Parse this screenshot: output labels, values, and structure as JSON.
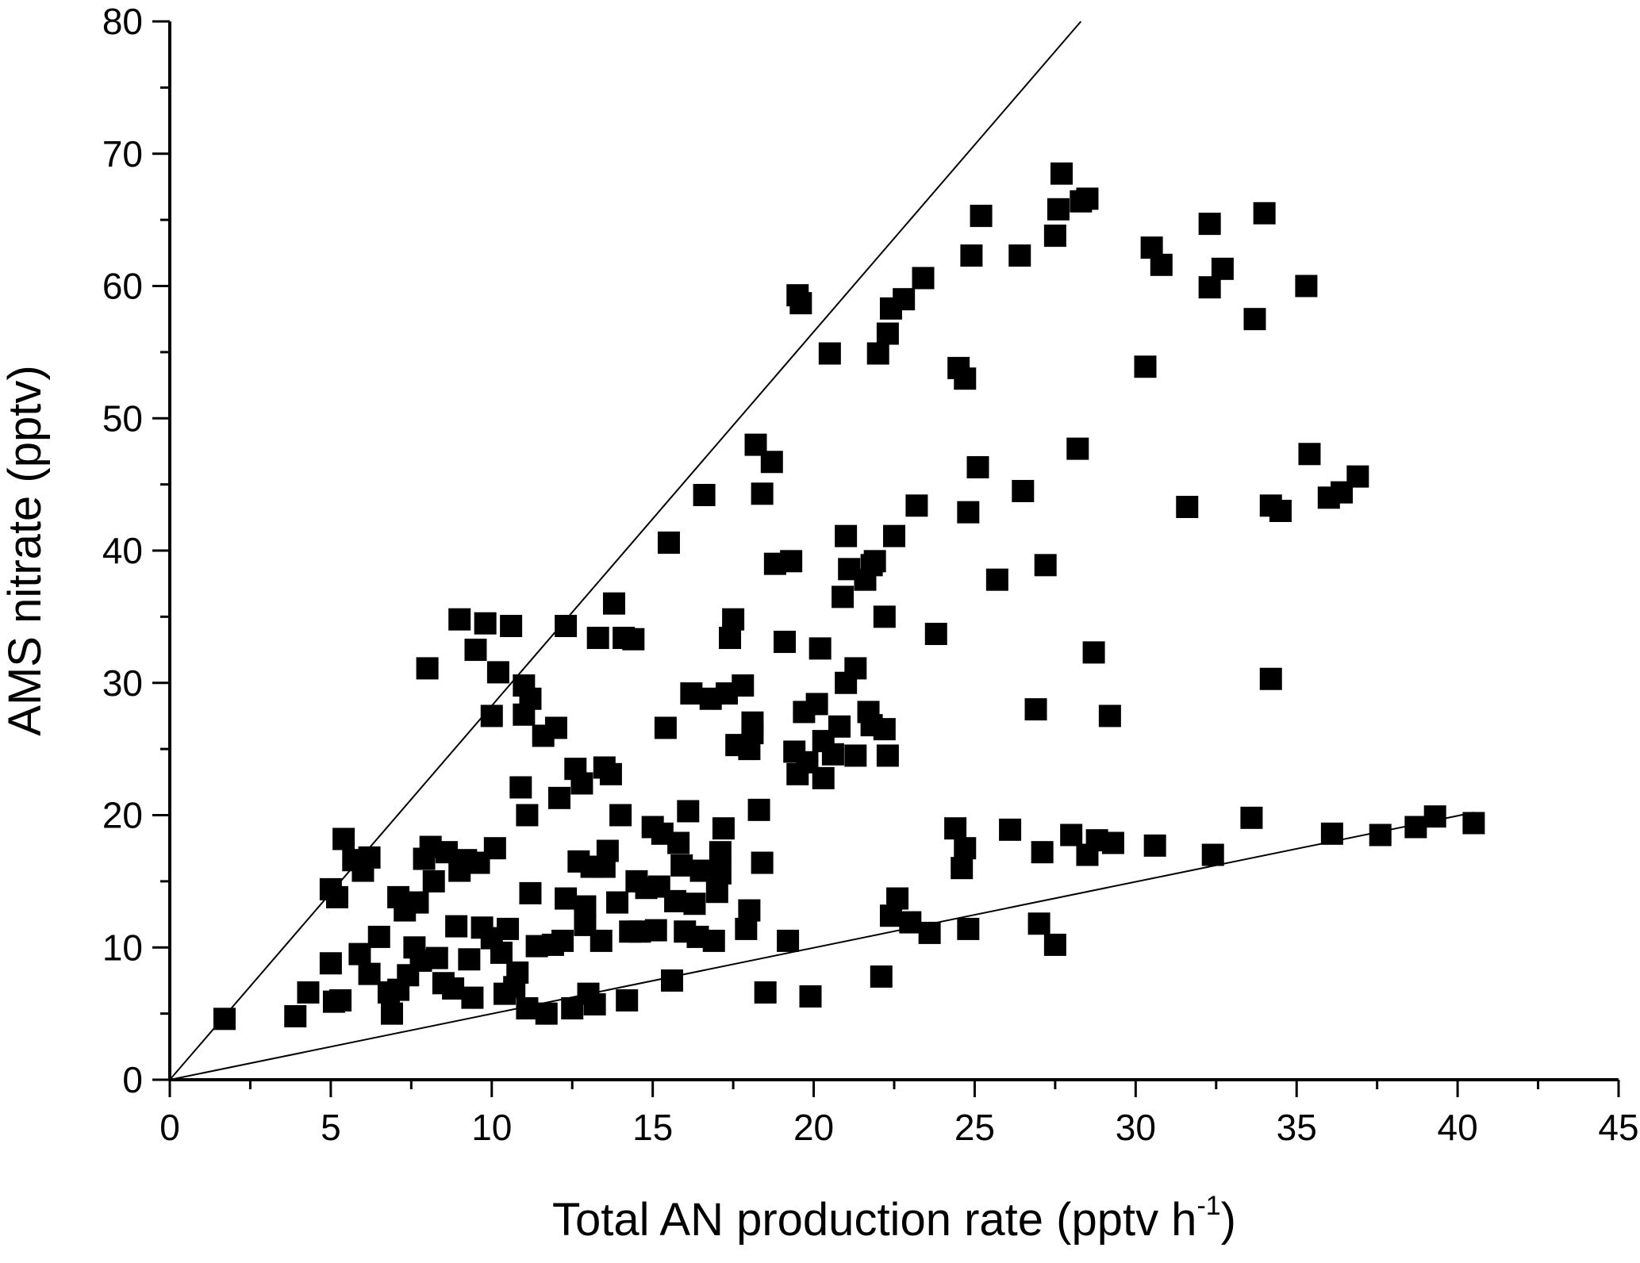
{
  "chart_data": {
    "type": "scatter",
    "xlabel_main": "Total AN production rate (pptv h",
    "xlabel_sup": "-1",
    "xlabel_tail": ")",
    "ylabel": "AMS nitrate (pptv)",
    "xlim": [
      0,
      45
    ],
    "ylim": [
      0,
      80
    ],
    "x_ticks": [
      0,
      5,
      10,
      15,
      20,
      25,
      30,
      35,
      40,
      45
    ],
    "y_ticks": [
      0,
      10,
      20,
      30,
      40,
      50,
      60,
      70,
      80
    ],
    "grid": false,
    "marker": "filled-square",
    "marker_color": "#000000",
    "reference_lines": [
      {
        "x": [
          0,
          28.3
        ],
        "y": [
          0,
          80
        ]
      },
      {
        "x": [
          0,
          40.5
        ],
        "y": [
          0,
          20.2
        ]
      }
    ],
    "points": [
      [
        1.7,
        4.6
      ],
      [
        3.9,
        4.8
      ],
      [
        4.3,
        6.6
      ],
      [
        5.3,
        6.0
      ],
      [
        5.1,
        5.9
      ],
      [
        5.0,
        8.8
      ],
      [
        5.0,
        14.4
      ],
      [
        5.2,
        13.8
      ],
      [
        5.4,
        18.2
      ],
      [
        5.7,
        16.6
      ],
      [
        6.0,
        15.8
      ],
      [
        6.2,
        16.8
      ],
      [
        5.9,
        9.5
      ],
      [
        6.2,
        8.0
      ],
      [
        6.5,
        10.8
      ],
      [
        6.8,
        6.6
      ],
      [
        6.9,
        5.0
      ],
      [
        7.1,
        6.8
      ],
      [
        7.1,
        13.8
      ],
      [
        7.3,
        12.8
      ],
      [
        7.4,
        7.9
      ],
      [
        7.6,
        10.0
      ],
      [
        7.7,
        13.4
      ],
      [
        7.8,
        9.0
      ],
      [
        7.9,
        16.7
      ],
      [
        8.0,
        31.1
      ],
      [
        8.1,
        17.6
      ],
      [
        8.2,
        15.0
      ],
      [
        8.3,
        9.2
      ],
      [
        8.5,
        7.3
      ],
      [
        8.6,
        17.2
      ],
      [
        8.8,
        6.9
      ],
      [
        8.9,
        11.6
      ],
      [
        9.0,
        15.8
      ],
      [
        9.0,
        34.8
      ],
      [
        9.2,
        16.6
      ],
      [
        9.3,
        9.1
      ],
      [
        9.4,
        6.2
      ],
      [
        9.5,
        32.5
      ],
      [
        9.6,
        16.4
      ],
      [
        9.7,
        11.5
      ],
      [
        9.8,
        34.5
      ],
      [
        10.0,
        10.7
      ],
      [
        10.0,
        27.5
      ],
      [
        10.1,
        17.5
      ],
      [
        10.2,
        30.8
      ],
      [
        10.3,
        9.6
      ],
      [
        10.4,
        6.5
      ],
      [
        10.5,
        11.4
      ],
      [
        10.6,
        34.3
      ],
      [
        10.7,
        7.0
      ],
      [
        10.8,
        8.1
      ],
      [
        10.9,
        22.1
      ],
      [
        11.0,
        29.8
      ],
      [
        11.0,
        27.6
      ],
      [
        11.1,
        5.4
      ],
      [
        11.1,
        20.0
      ],
      [
        11.2,
        28.8
      ],
      [
        11.2,
        14.1
      ],
      [
        11.4,
        10.1
      ],
      [
        11.6,
        26.0
      ],
      [
        11.7,
        5.0
      ],
      [
        11.9,
        10.2
      ],
      [
        12.0,
        26.6
      ],
      [
        12.1,
        21.3
      ],
      [
        12.2,
        10.5
      ],
      [
        12.3,
        13.7
      ],
      [
        12.3,
        34.3
      ],
      [
        12.5,
        5.4
      ],
      [
        12.6,
        23.5
      ],
      [
        12.7,
        16.5
      ],
      [
        12.8,
        22.4
      ],
      [
        12.9,
        13.1
      ],
      [
        12.9,
        11.7
      ],
      [
        13.0,
        6.5
      ],
      [
        13.1,
        16.1
      ],
      [
        13.2,
        5.7
      ],
      [
        13.3,
        33.4
      ],
      [
        13.4,
        10.5
      ],
      [
        13.5,
        23.6
      ],
      [
        13.5,
        16.1
      ],
      [
        13.6,
        17.3
      ],
      [
        13.7,
        23.1
      ],
      [
        13.8,
        36.0
      ],
      [
        13.9,
        13.4
      ],
      [
        14.0,
        20.0
      ],
      [
        14.1,
        33.4
      ],
      [
        14.2,
        6.0
      ],
      [
        14.3,
        11.2
      ],
      [
        14.4,
        33.3
      ],
      [
        14.5,
        15.0
      ],
      [
        14.6,
        11.2
      ],
      [
        14.8,
        14.5
      ],
      [
        15.0,
        19.1
      ],
      [
        15.1,
        11.3
      ],
      [
        15.2,
        14.6
      ],
      [
        15.3,
        18.6
      ],
      [
        15.4,
        26.6
      ],
      [
        15.5,
        40.6
      ],
      [
        15.6,
        7.5
      ],
      [
        15.7,
        13.5
      ],
      [
        15.8,
        17.9
      ],
      [
        15.9,
        16.2
      ],
      [
        16.0,
        11.2
      ],
      [
        16.1,
        20.3
      ],
      [
        16.2,
        29.2
      ],
      [
        16.3,
        13.3
      ],
      [
        16.4,
        10.8
      ],
      [
        16.5,
        15.8
      ],
      [
        16.6,
        44.2
      ],
      [
        16.8,
        28.8
      ],
      [
        16.9,
        10.5
      ],
      [
        17.0,
        14.2
      ],
      [
        17.1,
        15.6
      ],
      [
        17.1,
        17.2
      ],
      [
        17.2,
        19.0
      ],
      [
        17.3,
        29.2
      ],
      [
        17.4,
        33.4
      ],
      [
        17.5,
        34.8
      ],
      [
        17.6,
        25.3
      ],
      [
        17.8,
        29.8
      ],
      [
        17.9,
        11.4
      ],
      [
        18.0,
        12.8
      ],
      [
        18.0,
        25.0
      ],
      [
        18.1,
        26.2
      ],
      [
        18.1,
        27.0
      ],
      [
        18.2,
        48.0
      ],
      [
        18.3,
        20.4
      ],
      [
        18.4,
        16.4
      ],
      [
        18.4,
        44.3
      ],
      [
        18.5,
        6.6
      ],
      [
        18.7,
        46.7
      ],
      [
        18.8,
        39.0
      ],
      [
        19.1,
        33.1
      ],
      [
        19.2,
        10.5
      ],
      [
        19.3,
        39.2
      ],
      [
        19.4,
        24.8
      ],
      [
        19.5,
        23.1
      ],
      [
        19.5,
        59.3
      ],
      [
        19.6,
        58.7
      ],
      [
        19.7,
        27.8
      ],
      [
        19.8,
        24.0
      ],
      [
        19.9,
        6.3
      ],
      [
        20.1,
        28.4
      ],
      [
        20.2,
        32.6
      ],
      [
        20.3,
        22.8
      ],
      [
        20.3,
        25.6
      ],
      [
        20.5,
        54.9
      ],
      [
        20.6,
        24.6
      ],
      [
        20.8,
        26.7
      ],
      [
        20.9,
        36.5
      ],
      [
        21.0,
        30.0
      ],
      [
        21.0,
        41.1
      ],
      [
        21.1,
        38.6
      ],
      [
        21.3,
        24.5
      ],
      [
        21.3,
        31.1
      ],
      [
        21.6,
        37.8
      ],
      [
        21.7,
        27.8
      ],
      [
        21.8,
        26.8
      ],
      [
        21.8,
        38.9
      ],
      [
        21.9,
        39.2
      ],
      [
        22.0,
        54.9
      ],
      [
        22.1,
        7.8
      ],
      [
        22.2,
        26.5
      ],
      [
        22.2,
        35.0
      ],
      [
        22.3,
        24.5
      ],
      [
        22.3,
        56.4
      ],
      [
        22.4,
        58.3
      ],
      [
        22.4,
        12.4
      ],
      [
        22.5,
        41.1
      ],
      [
        22.6,
        13.7
      ],
      [
        22.8,
        59.0
      ],
      [
        23.0,
        11.9
      ],
      [
        23.2,
        43.4
      ],
      [
        23.4,
        60.6
      ],
      [
        23.6,
        11.1
      ],
      [
        23.8,
        33.7
      ],
      [
        24.4,
        19.0
      ],
      [
        24.5,
        53.8
      ],
      [
        24.6,
        16.0
      ],
      [
        24.7,
        17.5
      ],
      [
        24.8,
        42.9
      ],
      [
        24.7,
        53.0
      ],
      [
        24.8,
        11.4
      ],
      [
        24.9,
        62.3
      ],
      [
        25.1,
        46.3
      ],
      [
        25.2,
        65.3
      ],
      [
        25.7,
        37.8
      ],
      [
        26.1,
        18.9
      ],
      [
        26.4,
        62.3
      ],
      [
        26.5,
        44.5
      ],
      [
        26.9,
        28.0
      ],
      [
        27.0,
        11.8
      ],
      [
        27.1,
        17.2
      ],
      [
        27.2,
        38.9
      ],
      [
        27.5,
        10.2
      ],
      [
        27.5,
        63.8
      ],
      [
        27.6,
        65.8
      ],
      [
        27.7,
        68.5
      ],
      [
        28.0,
        18.5
      ],
      [
        28.2,
        47.7
      ],
      [
        28.3,
        66.4
      ],
      [
        28.5,
        66.6
      ],
      [
        28.5,
        17.0
      ],
      [
        28.7,
        32.3
      ],
      [
        28.8,
        18.1
      ],
      [
        29.2,
        27.5
      ],
      [
        29.3,
        17.9
      ],
      [
        30.3,
        53.9
      ],
      [
        30.6,
        17.7
      ],
      [
        30.5,
        62.9
      ],
      [
        30.8,
        61.6
      ],
      [
        31.6,
        43.3
      ],
      [
        32.3,
        59.9
      ],
      [
        32.3,
        64.7
      ],
      [
        32.4,
        17.0
      ],
      [
        32.7,
        61.3
      ],
      [
        33.6,
        19.8
      ],
      [
        33.7,
        57.5
      ],
      [
        34.0,
        65.5
      ],
      [
        34.2,
        30.3
      ],
      [
        34.2,
        43.4
      ],
      [
        34.5,
        43.0
      ],
      [
        35.3,
        60.0
      ],
      [
        35.4,
        47.3
      ],
      [
        36.0,
        44.0
      ],
      [
        36.4,
        44.4
      ],
      [
        36.9,
        45.6
      ],
      [
        36.1,
        18.6
      ],
      [
        37.6,
        18.5
      ],
      [
        38.7,
        19.1
      ],
      [
        39.3,
        19.9
      ],
      [
        40.5,
        19.4
      ]
    ]
  }
}
